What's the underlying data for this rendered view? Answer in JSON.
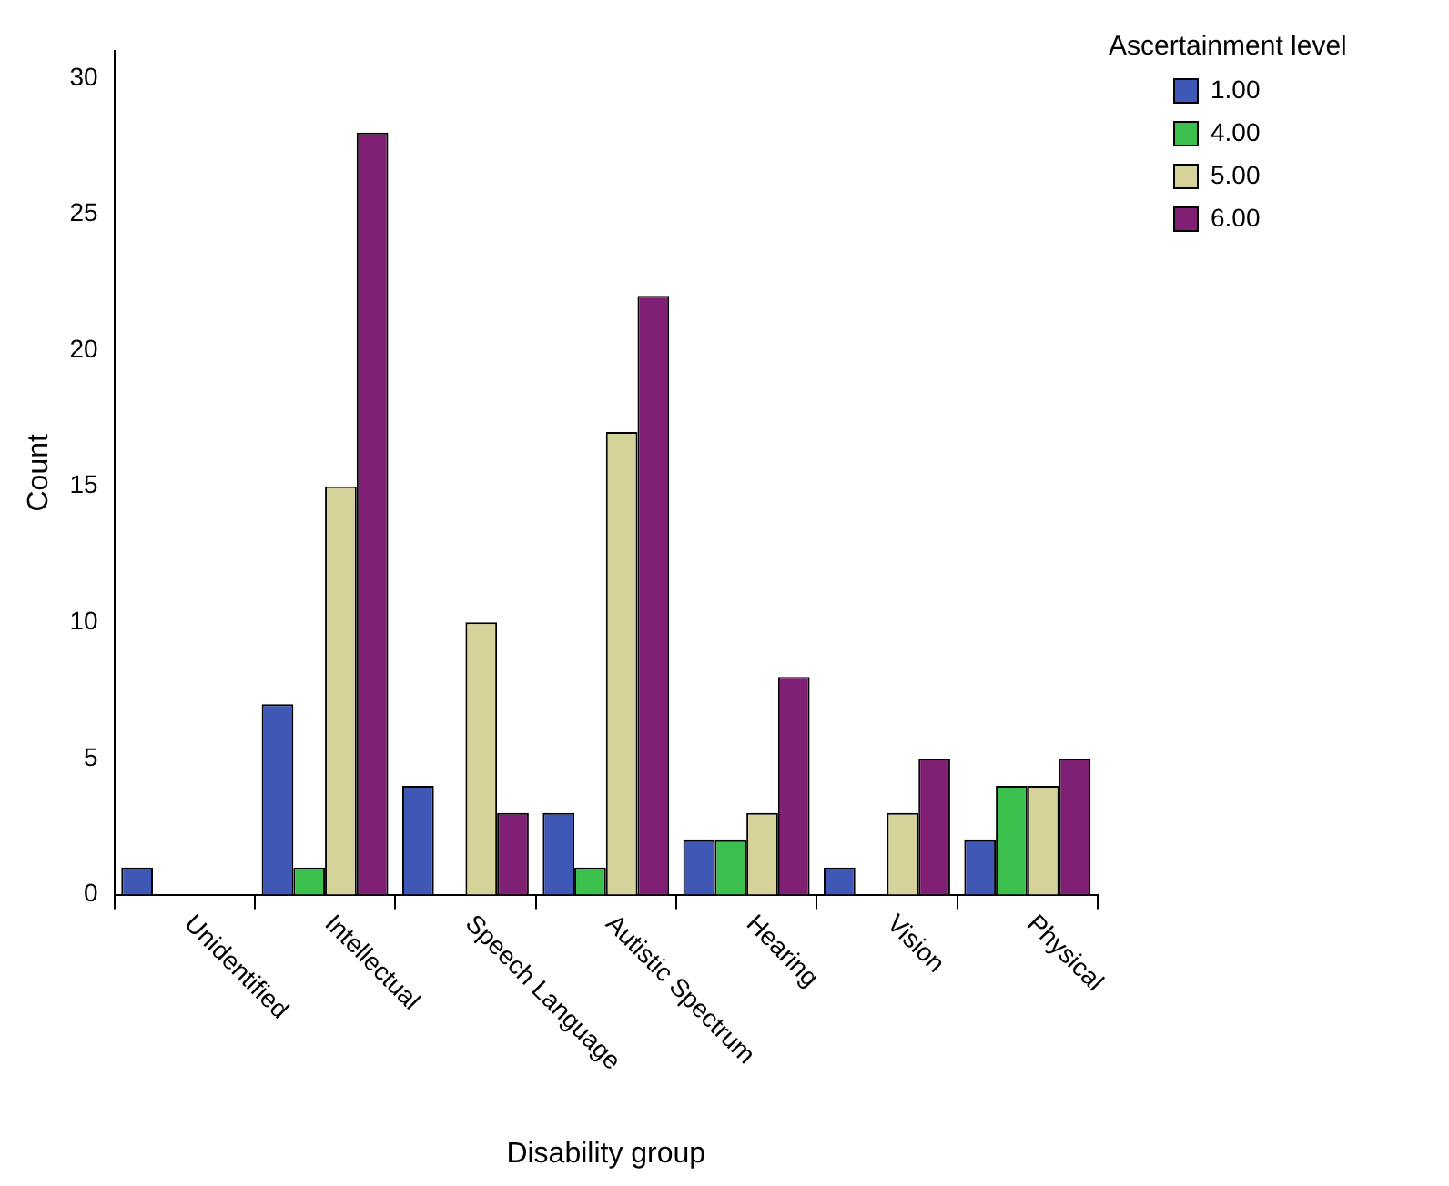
{
  "chart_data": {
    "type": "bar",
    "xlabel": "Disability group",
    "ylabel": "Count",
    "legend_title": "Ascertainment level",
    "legend": "top right",
    "grid": false,
    "categories": [
      "Unidentified",
      "Intellectual",
      "Speech Language",
      "Autistic Spectrum",
      "Hearing",
      "Vision",
      "Physical"
    ],
    "series": [
      {
        "name": "1.00",
        "color": "#3f58b5",
        "values": [
          1,
          7,
          4,
          3,
          2,
          1,
          2
        ]
      },
      {
        "name": "4.00",
        "color": "#3bbf4d",
        "values": [
          0,
          1,
          0,
          1,
          2,
          0,
          4
        ]
      },
      {
        "name": "5.00",
        "color": "#d6d39a",
        "values": [
          0,
          15,
          10,
          17,
          3,
          3,
          4
        ]
      },
      {
        "name": "6.00",
        "color": "#7f2074",
        "values": [
          0,
          28,
          3,
          22,
          8,
          5,
          5
        ]
      }
    ],
    "ylim": [
      0,
      31
    ],
    "yticks": [
      0,
      5,
      10,
      15,
      20,
      25,
      30
    ]
  }
}
